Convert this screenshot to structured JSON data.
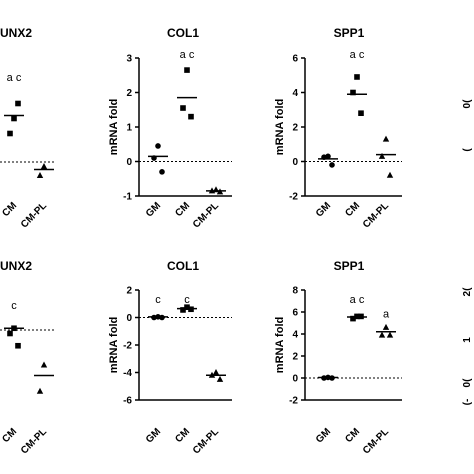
{
  "chart_data": [
    {
      "type": "scatter",
      "title": "UNX2",
      "ylabel": "",
      "ylim": [
        -1,
        3
      ],
      "yticks": [],
      "categories": [
        "GM",
        "CM",
        "CM-PL"
      ],
      "xlabels": [
        "",
        "CM",
        "CM-PL"
      ],
      "zero_line": 0,
      "points": [
        {
          "cat": "CM",
          "y": 1.45,
          "marker": "square"
        },
        {
          "cat": "CM",
          "y": 0.95,
          "marker": "square"
        },
        {
          "cat": "CM",
          "y": 1.95,
          "marker": "square"
        },
        {
          "cat": "CM-PL",
          "y": -0.15,
          "marker": "triangle"
        },
        {
          "cat": "CM-PL",
          "y": -0.45,
          "marker": "triangle"
        }
      ],
      "means": [
        {
          "cat": "CM",
          "y": 1.55
        },
        {
          "cat": "CM-PL",
          "y": -0.25
        }
      ],
      "annotations": [
        {
          "cat": "CM",
          "text": "a c",
          "y": 2.7
        }
      ]
    },
    {
      "type": "scatter",
      "title": "COL1",
      "ylabel": "mRNA fold",
      "ylim": [
        -1,
        3
      ],
      "yticks": [
        -1,
        0,
        1,
        2,
        3
      ],
      "categories": [
        "GM",
        "CM",
        "CM-PL"
      ],
      "xlabels": [
        "GM",
        "CM",
        "CM-PL"
      ],
      "zero_line": 0,
      "points": [
        {
          "cat": "GM",
          "y": 0.45,
          "marker": "circle"
        },
        {
          "cat": "GM",
          "y": 0.1,
          "marker": "circle"
        },
        {
          "cat": "GM",
          "y": -0.3,
          "marker": "circle"
        },
        {
          "cat": "CM",
          "y": 2.65,
          "marker": "square"
        },
        {
          "cat": "CM",
          "y": 1.55,
          "marker": "square"
        },
        {
          "cat": "CM",
          "y": 1.3,
          "marker": "square"
        },
        {
          "cat": "CM-PL",
          "y": -0.82,
          "marker": "triangle"
        },
        {
          "cat": "CM-PL",
          "y": -0.85,
          "marker": "triangle"
        },
        {
          "cat": "CM-PL",
          "y": -0.88,
          "marker": "triangle"
        }
      ],
      "means": [
        {
          "cat": "GM",
          "y": 0.15
        },
        {
          "cat": "CM",
          "y": 1.85
        },
        {
          "cat": "CM-PL",
          "y": -0.85
        }
      ],
      "annotations": [
        {
          "cat": "CM",
          "text": "a c",
          "y": 3.0
        }
      ]
    },
    {
      "type": "scatter",
      "title": "SPP1",
      "ylabel": "mRNA fold",
      "ylim": [
        -2,
        6
      ],
      "yticks": [
        -2,
        0,
        2,
        4,
        6
      ],
      "categories": [
        "GM",
        "CM",
        "CM-PL"
      ],
      "xlabels": [
        "GM",
        "CM",
        "CM-PL"
      ],
      "zero_line": 0,
      "points": [
        {
          "cat": "GM",
          "y": 0.3,
          "marker": "circle"
        },
        {
          "cat": "GM",
          "y": 0.25,
          "marker": "circle"
        },
        {
          "cat": "GM",
          "y": -0.2,
          "marker": "circle"
        },
        {
          "cat": "CM",
          "y": 4.9,
          "marker": "square"
        },
        {
          "cat": "CM",
          "y": 4.0,
          "marker": "square"
        },
        {
          "cat": "CM",
          "y": 2.8,
          "marker": "square"
        },
        {
          "cat": "CM-PL",
          "y": 1.3,
          "marker": "triangle"
        },
        {
          "cat": "CM-PL",
          "y": 0.3,
          "marker": "triangle"
        },
        {
          "cat": "CM-PL",
          "y": -0.8,
          "marker": "triangle"
        }
      ],
      "means": [
        {
          "cat": "GM",
          "y": 0.15
        },
        {
          "cat": "CM",
          "y": 3.9
        },
        {
          "cat": "CM-PL",
          "y": 0.4
        }
      ],
      "annotations": [
        {
          "cat": "CM",
          "text": "a c",
          "y": 6.0
        }
      ]
    },
    {
      "type": "scatter",
      "title": "",
      "ylabel": "",
      "ylim": [
        -1,
        3
      ],
      "yticks": [],
      "categories": [],
      "xlabels": [],
      "zero_line": null,
      "points": [],
      "means": [],
      "annotations": [],
      "edge_labels": [
        "0(",
        "("
      ]
    },
    {
      "type": "scatter",
      "title": "UNX2",
      "ylabel": "",
      "ylim": [
        -2,
        1
      ],
      "yticks": [],
      "categories": [
        "GM",
        "CM",
        "CM-PL"
      ],
      "xlabels": [
        "",
        "CM",
        "CM-PL"
      ],
      "zero_line": 0,
      "points": [
        {
          "cat": "CM",
          "y": 0.05,
          "marker": "square"
        },
        {
          "cat": "CM",
          "y": -0.1,
          "marker": "square"
        },
        {
          "cat": "CM",
          "y": -0.45,
          "marker": "square"
        },
        {
          "cat": "CM-PL",
          "y": -1.0,
          "marker": "triangle"
        },
        {
          "cat": "CM-PL",
          "y": -1.75,
          "marker": "triangle"
        }
      ],
      "means": [
        {
          "cat": "CM",
          "y": 0.05
        },
        {
          "cat": "CM-PL",
          "y": -1.3
        }
      ],
      "annotations": [
        {
          "cat": "CM",
          "text": "c",
          "y": 0.6
        }
      ]
    },
    {
      "type": "scatter",
      "title": "COL1",
      "ylabel": "mRNA fold",
      "ylim": [
        -6,
        2
      ],
      "yticks": [
        -6,
        -4,
        -2,
        0,
        2
      ],
      "categories": [
        "GM",
        "CM",
        "CM-PL"
      ],
      "xlabels": [
        "GM",
        "CM",
        "CM-PL"
      ],
      "zero_line": 0,
      "points": [
        {
          "cat": "GM",
          "y": 0.05,
          "marker": "circle"
        },
        {
          "cat": "GM",
          "y": 0.0,
          "marker": "circle"
        },
        {
          "cat": "GM",
          "y": 0.0,
          "marker": "circle"
        },
        {
          "cat": "CM",
          "y": 0.75,
          "marker": "square"
        },
        {
          "cat": "CM",
          "y": 0.55,
          "marker": "square"
        },
        {
          "cat": "CM",
          "y": 0.6,
          "marker": "square"
        },
        {
          "cat": "CM-PL",
          "y": -4.0,
          "marker": "triangle"
        },
        {
          "cat": "CM-PL",
          "y": -4.2,
          "marker": "triangle"
        },
        {
          "cat": "CM-PL",
          "y": -4.5,
          "marker": "triangle"
        }
      ],
      "means": [
        {
          "cat": "GM",
          "y": 0.05
        },
        {
          "cat": "CM",
          "y": 0.65
        },
        {
          "cat": "CM-PL",
          "y": -4.2
        }
      ],
      "annotations": [
        {
          "cat": "GM",
          "text": "c",
          "y": 1.05
        },
        {
          "cat": "CM",
          "text": "c",
          "y": 1.05
        }
      ]
    },
    {
      "type": "scatter",
      "title": "SPP1",
      "ylabel": "mRNA fold",
      "ylim": [
        -2,
        8
      ],
      "yticks": [
        -2,
        0,
        2,
        4,
        6,
        8
      ],
      "categories": [
        "GM",
        "CM",
        "CM-PL"
      ],
      "xlabels": [
        "GM",
        "CM",
        "CM-PL"
      ],
      "zero_line": 0,
      "points": [
        {
          "cat": "GM",
          "y": 0.05,
          "marker": "circle"
        },
        {
          "cat": "GM",
          "y": 0.0,
          "marker": "circle"
        },
        {
          "cat": "GM",
          "y": 0.0,
          "marker": "circle"
        },
        {
          "cat": "CM",
          "y": 5.6,
          "marker": "square"
        },
        {
          "cat": "CM",
          "y": 5.4,
          "marker": "square"
        },
        {
          "cat": "CM",
          "y": 5.6,
          "marker": "square"
        },
        {
          "cat": "CM-PL",
          "y": 4.6,
          "marker": "triangle"
        },
        {
          "cat": "CM-PL",
          "y": 3.9,
          "marker": "triangle"
        },
        {
          "cat": "CM-PL",
          "y": 3.9,
          "marker": "triangle"
        }
      ],
      "means": [
        {
          "cat": "GM",
          "y": 0.05
        },
        {
          "cat": "CM",
          "y": 5.55
        },
        {
          "cat": "CM-PL",
          "y": 4.2
        }
      ],
      "annotations": [
        {
          "cat": "CM",
          "text": "a c",
          "y": 6.8
        },
        {
          "cat": "CM-PL",
          "text": "a",
          "y": 5.5
        }
      ]
    },
    {
      "type": "scatter",
      "title": "",
      "ylabel": "",
      "ylim": [
        -1,
        3
      ],
      "yticks": [],
      "categories": [],
      "xlabels": [],
      "zero_line": null,
      "points": [],
      "means": [],
      "annotations": [],
      "edge_labels": [
        "2(",
        "1",
        "0(",
        "(-"
      ]
    }
  ]
}
